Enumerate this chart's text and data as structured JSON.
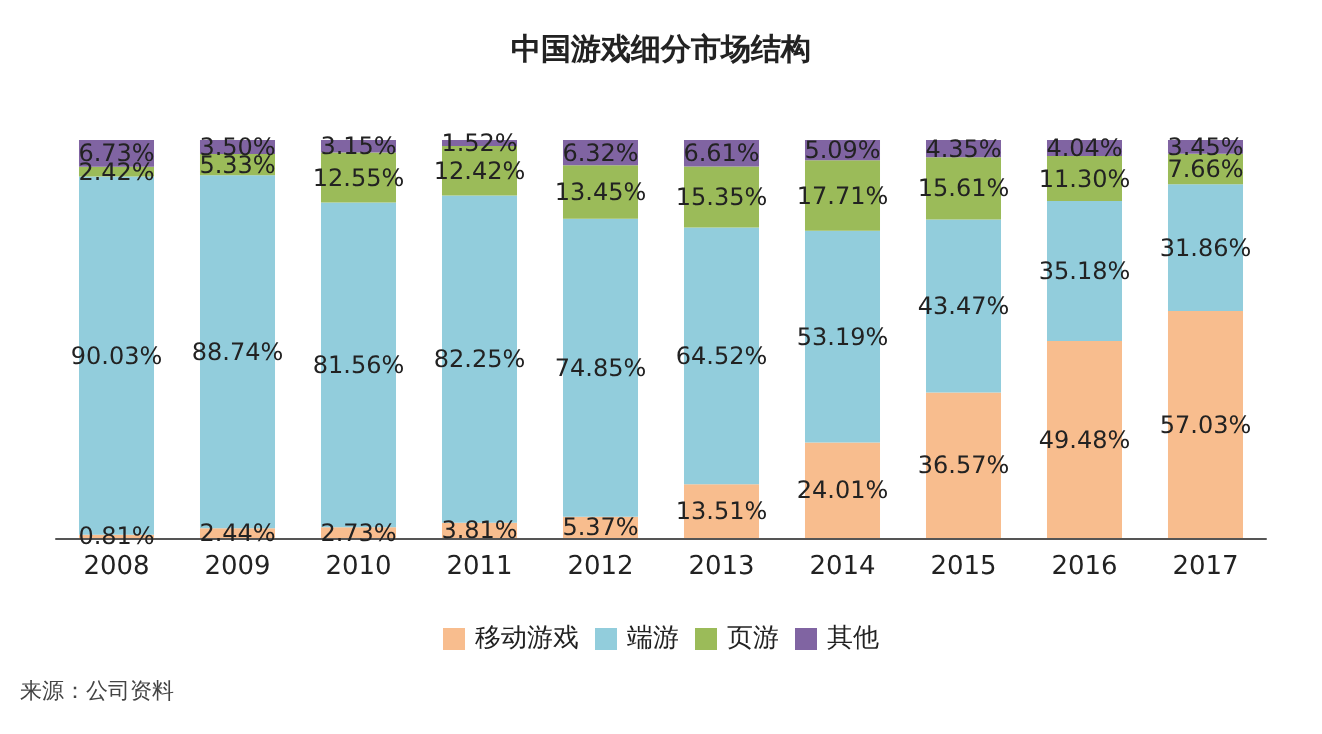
{
  "chart_data": {
    "type": "bar",
    "title": "中国游戏细分市场结构",
    "stacked": true,
    "legend": "bottom",
    "categories": [
      "2008",
      "2009",
      "2010",
      "2011",
      "2012",
      "2013",
      "2014",
      "2015",
      "2016",
      "2017"
    ],
    "series": [
      {
        "name": "移动游戏",
        "color": "#f8bd8e",
        "values": [
          0.81,
          2.44,
          2.73,
          3.81,
          5.37,
          13.51,
          24.01,
          36.57,
          49.48,
          57.03
        ],
        "value_labels": [
          "0.81%",
          "2.44%",
          "2.73%",
          "3.81%",
          "5.37%",
          "13.51%",
          "24.01%",
          "36.57%",
          "49.48%",
          "57.03%"
        ]
      },
      {
        "name": "端游",
        "color": "#92cddc",
        "values": [
          90.03,
          88.74,
          81.56,
          82.25,
          74.85,
          64.52,
          53.19,
          43.47,
          35.18,
          31.86
        ],
        "value_labels": [
          "90.03%",
          "88.74%",
          "81.56%",
          "82.25%",
          "74.85%",
          "64.52%",
          "53.19%",
          "43.47%",
          "35.18%",
          "31.86%"
        ]
      },
      {
        "name": "页游",
        "color": "#9bbb59",
        "values": [
          2.42,
          5.33,
          12.55,
          12.42,
          13.45,
          15.35,
          17.71,
          15.61,
          11.3,
          7.66
        ],
        "value_labels": [
          "2.42%",
          "5.33%",
          "12.55%",
          "12.42%",
          "13.45%",
          "15.35%",
          "17.71%",
          "15.61%",
          "11.30%",
          "7.66%"
        ]
      },
      {
        "name": "其他",
        "color": "#8064a2",
        "values": [
          6.73,
          3.5,
          3.15,
          1.52,
          6.32,
          6.61,
          5.09,
          4.35,
          4.04,
          3.45
        ],
        "value_labels": [
          "6.73%",
          "3.50%",
          "3.15%",
          "1.52%",
          "6.32%",
          "6.61%",
          "5.09%",
          "4.35%",
          "4.04%",
          "3.45%"
        ]
      }
    ],
    "annotations": [
      "来源：公司资料"
    ]
  }
}
